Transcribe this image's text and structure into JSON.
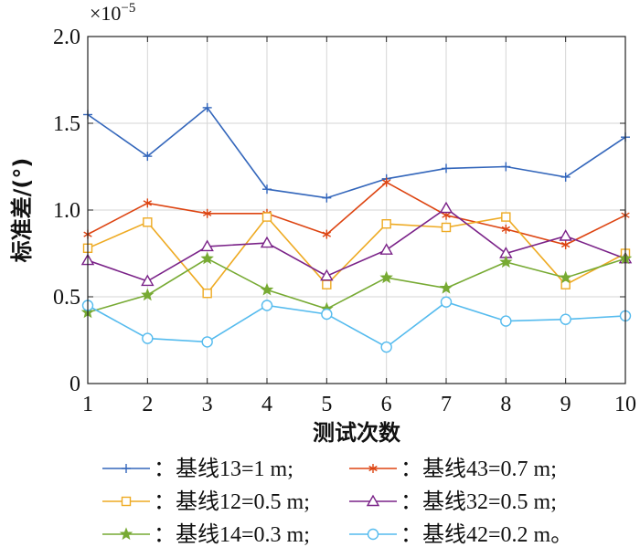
{
  "chart_data": {
    "type": "line",
    "xlabel": "测试次数",
    "ylabel": "标准差/(°)",
    "scale_label": "×10",
    "scale_exponent": "−5",
    "x": [
      1,
      2,
      3,
      4,
      5,
      6,
      7,
      8,
      9,
      10
    ],
    "xlim": [
      1,
      10
    ],
    "ylim": [
      0,
      2.0
    ],
    "x_ticks": [
      "1",
      "2",
      "3",
      "4",
      "5",
      "6",
      "7",
      "8",
      "9",
      "10"
    ],
    "y_ticks": [
      "0",
      "0.5",
      "1.0",
      "1.5",
      "2.0"
    ],
    "y_tick_values": [
      0,
      0.5,
      1.0,
      1.5,
      2.0
    ],
    "grid": true,
    "legend_position": "bottom",
    "series": [
      {
        "name": "：基线13=1 m;",
        "color": "#3366bb",
        "marker": "plus",
        "values": [
          1.55,
          1.31,
          1.59,
          1.12,
          1.07,
          1.18,
          1.24,
          1.25,
          1.19,
          1.42
        ]
      },
      {
        "name": "：基线43=0.7 m;",
        "color": "#dd4411",
        "marker": "asterisk",
        "values": [
          0.86,
          1.04,
          0.98,
          0.98,
          0.86,
          1.16,
          0.97,
          0.89,
          0.8,
          0.97
        ]
      },
      {
        "name": "：基线12=0.5 m;",
        "color": "#eeaa22",
        "marker": "square",
        "values": [
          0.78,
          0.93,
          0.52,
          0.96,
          0.57,
          0.92,
          0.9,
          0.96,
          0.57,
          0.75
        ]
      },
      {
        "name": "：基线32=0.5 m;",
        "color": "#7a2288",
        "marker": "triangle",
        "values": [
          0.71,
          0.59,
          0.79,
          0.81,
          0.62,
          0.77,
          1.01,
          0.75,
          0.85,
          0.72
        ]
      },
      {
        "name": "：基线14=0.3 m;",
        "color": "#77aa33",
        "marker": "star",
        "values": [
          0.41,
          0.51,
          0.72,
          0.54,
          0.43,
          0.61,
          0.55,
          0.7,
          0.61,
          0.72
        ]
      },
      {
        "name": "：基线42=0.2 m。",
        "color": "#55bbee",
        "marker": "circle",
        "values": [
          0.45,
          0.26,
          0.24,
          0.45,
          0.4,
          0.21,
          0.47,
          0.36,
          0.37,
          0.39
        ]
      }
    ]
  }
}
